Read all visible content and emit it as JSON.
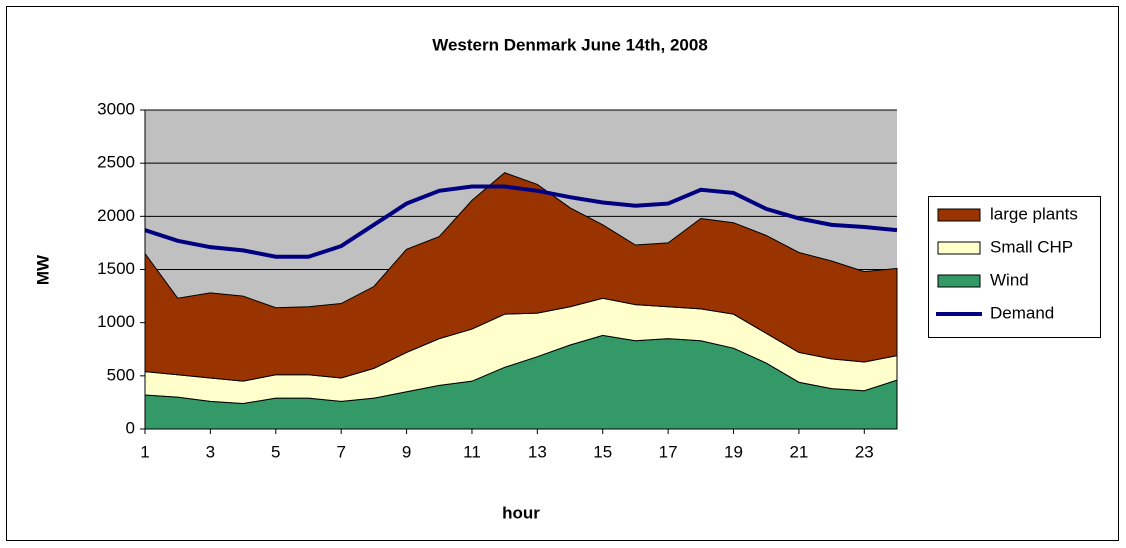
{
  "chart_data": {
    "type": "stacked_area_line",
    "title": "Western Denmark June 14th, 2008",
    "x_label": "hour",
    "y_label": "MW",
    "x": [
      1,
      2,
      3,
      4,
      5,
      6,
      7,
      8,
      9,
      10,
      11,
      12,
      13,
      14,
      15,
      16,
      17,
      18,
      19,
      20,
      21,
      22,
      23,
      24
    ],
    "xlim": [
      1,
      24
    ],
    "xticks": [
      1,
      3,
      5,
      7,
      9,
      11,
      13,
      15,
      17,
      19,
      21,
      23
    ],
    "ylim": [
      0,
      3000
    ],
    "yticks": [
      0,
      500,
      1000,
      1500,
      2000,
      2500,
      3000
    ],
    "grid": true,
    "legend": "right",
    "plot_background": "#c0c0c0",
    "series": [
      {
        "name": "large plants",
        "kind": "area",
        "color": "#993300",
        "values": [
          1110,
          720,
          800,
          800,
          630,
          640,
          700,
          770,
          970,
          960,
          1210,
          1330,
          1210,
          930,
          690,
          560,
          600,
          850,
          860,
          920,
          940,
          920,
          850,
          820
        ]
      },
      {
        "name": "Small CHP",
        "kind": "area",
        "color": "#ffffcc",
        "values": [
          220,
          210,
          220,
          210,
          220,
          220,
          220,
          280,
          370,
          440,
          490,
          500,
          410,
          360,
          350,
          340,
          300,
          300,
          320,
          280,
          280,
          280,
          270,
          230
        ]
      },
      {
        "name": "Wind",
        "kind": "area",
        "color": "#339966",
        "values": [
          320,
          300,
          260,
          240,
          290,
          290,
          260,
          290,
          350,
          410,
          450,
          580,
          680,
          790,
          880,
          830,
          850,
          830,
          760,
          620,
          440,
          380,
          360,
          460
        ]
      },
      {
        "name": "Demand",
        "kind": "line",
        "color": "#000080",
        "values": [
          1870,
          1770,
          1710,
          1680,
          1620,
          1620,
          1720,
          1920,
          2120,
          2240,
          2280,
          2280,
          2240,
          2180,
          2130,
          2100,
          2120,
          2250,
          2220,
          2070,
          1980,
          1920,
          1900,
          1870
        ]
      }
    ]
  }
}
